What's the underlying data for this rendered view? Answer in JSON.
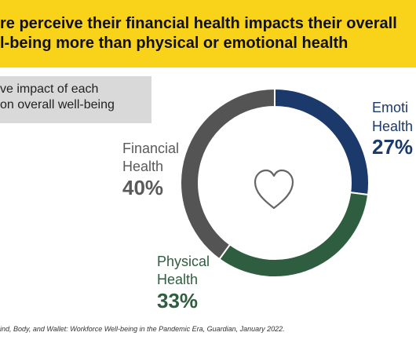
{
  "banner": {
    "line1": "re perceive their financial health impacts their overall",
    "line2": "l-being more than physical or emotional health"
  },
  "subtitle": {
    "line1": "ve impact of each",
    "line2": "on overall well-being"
  },
  "footnote": "ind, Body, and Wallet: Workforce Well-being in the Pandemic Era, Guardian, January 2022.",
  "center_icon": "heart-outline-icon",
  "colors": {
    "banner": "#f8d31a",
    "emotional": "#1b3a6b",
    "physical": "#2f5d3f",
    "financial": "#545454",
    "emotional_text": "#1b3a6b",
    "physical_text": "#2f5d3f",
    "financial_text": "#5a5a5a"
  },
  "chart_data": {
    "type": "pie",
    "categories": [
      "Emotional Health",
      "Physical Health",
      "Financial Health"
    ],
    "values": [
      27,
      33,
      40
    ],
    "unit": "%",
    "labels": [
      {
        "line1": "Emoti",
        "line2": "Health",
        "pct": "27%"
      },
      {
        "line1": "Physical",
        "line2": "Health",
        "pct": "33%"
      },
      {
        "line1": "Financial",
        "line2": "Health",
        "pct": "40%"
      }
    ]
  }
}
